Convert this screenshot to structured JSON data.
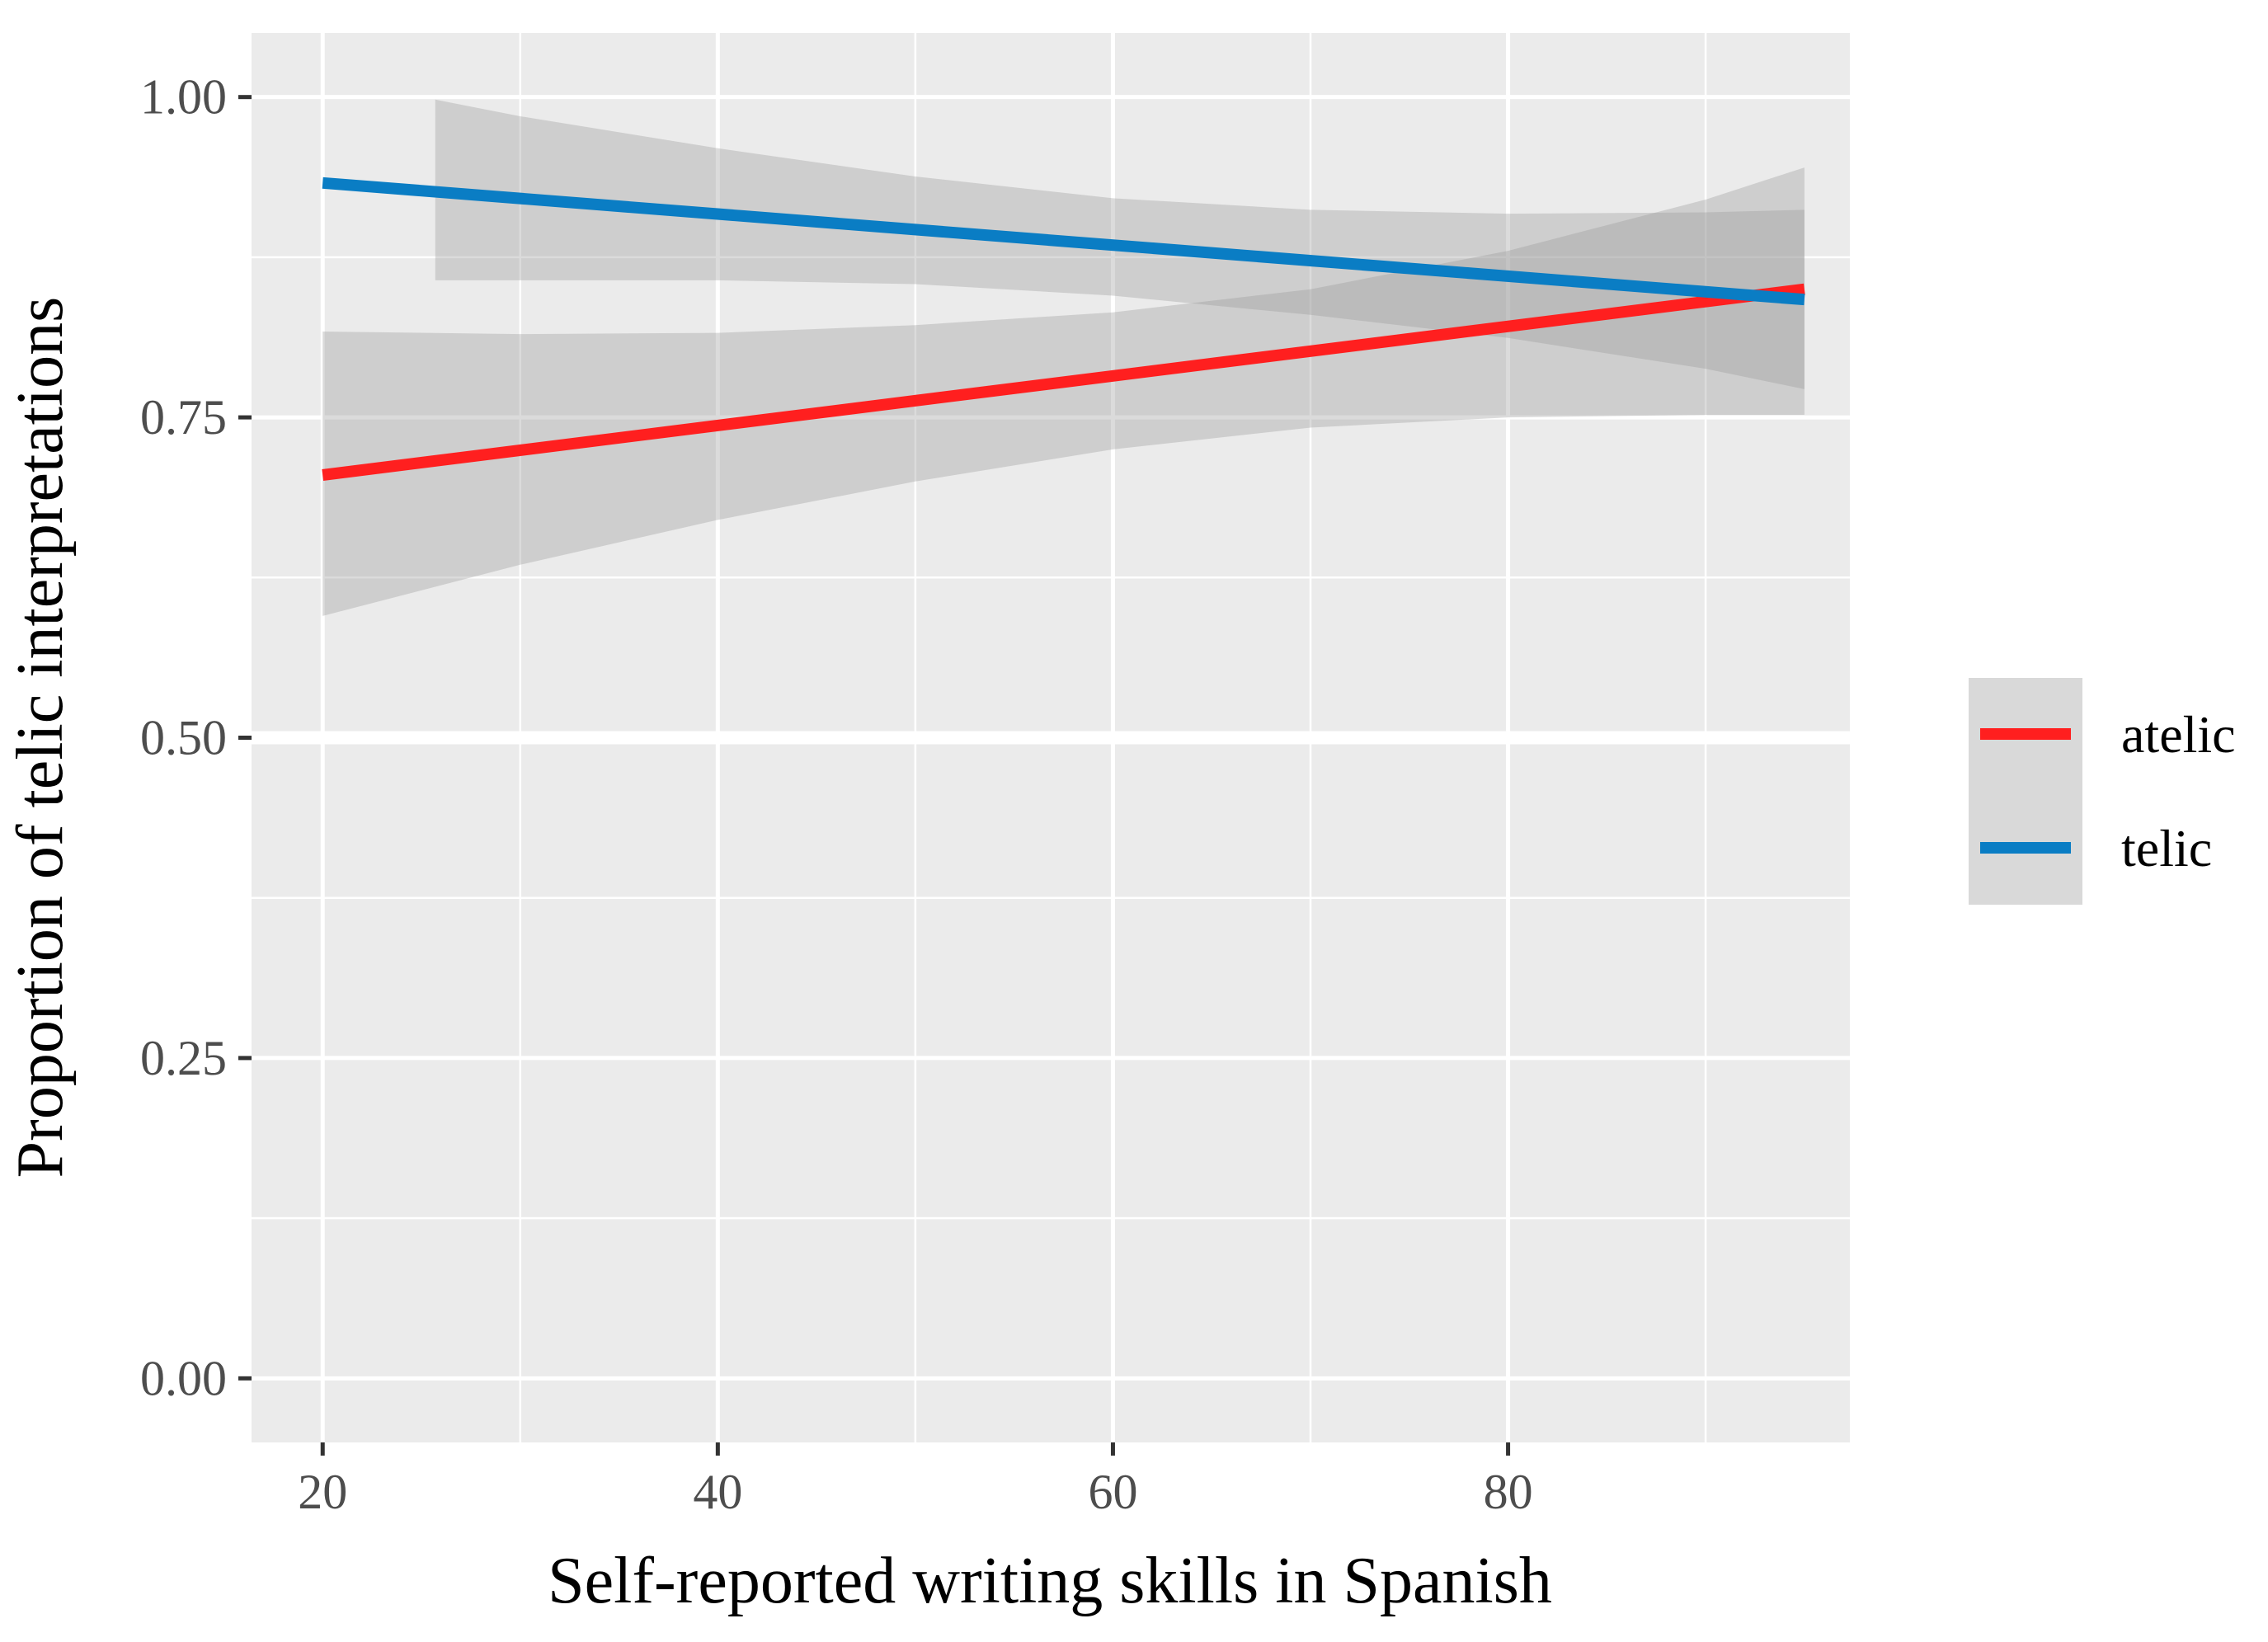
{
  "chart_data": {
    "type": "line",
    "title": "",
    "xlabel": "Self-reported writing skills in Spanish",
    "ylabel": "Proportion of telic interpretations",
    "xlim": [
      16.4,
      97.3
    ],
    "ylim": [
      -0.05,
      1.05
    ],
    "xticks": [
      20,
      40,
      60,
      80
    ],
    "xtick_labels": [
      "20",
      "40",
      "60",
      "80"
    ],
    "yticks": [
      0,
      0.25,
      0.5,
      0.75,
      1
    ],
    "ytick_labels": [
      "0.00",
      "0.25",
      "0.50",
      "0.75",
      "1.00"
    ],
    "x_minor_breaks": [
      30,
      50,
      70,
      90
    ],
    "y_minor_breaks": [
      0.125,
      0.375,
      0.625,
      0.875
    ],
    "grid": true,
    "panel_background": "#ebebeb",
    "legend_position": "right",
    "series": [
      {
        "name": "atelic",
        "color": "#ff1f1f",
        "x": [
          20,
          95
        ],
        "y": [
          0.705,
          0.85
        ],
        "ribbon": {
          "x": [
            20,
            30,
            40,
            50,
            60,
            70,
            80,
            90,
            95
          ],
          "upper": [
            0.817,
            0.815,
            0.816,
            0.822,
            0.832,
            0.85,
            0.88,
            0.92,
            0.945
          ],
          "lower": [
            0.595,
            0.635,
            0.67,
            0.7,
            0.725,
            0.742,
            0.75,
            0.752,
            0.752
          ]
        }
      },
      {
        "name": "telic",
        "color": "#0a7dc4",
        "x": [
          20,
          95
        ],
        "y": [
          0.933,
          0.842
        ],
        "ribbon": {
          "x": [
            25.7,
            30,
            40,
            50,
            60,
            70,
            80,
            90,
            95
          ],
          "upper": [
            0.998,
            0.985,
            0.96,
            0.938,
            0.921,
            0.912,
            0.909,
            0.91,
            0.912
          ],
          "lower": [
            0.857,
            0.857,
            0.857,
            0.854,
            0.845,
            0.83,
            0.812,
            0.788,
            0.772
          ]
        }
      }
    ],
    "ribbon_color": "#999999",
    "ribbon_opacity": 0.35
  }
}
